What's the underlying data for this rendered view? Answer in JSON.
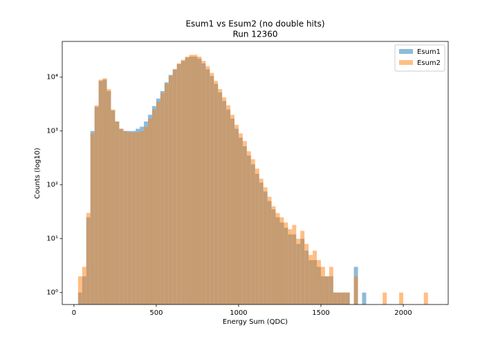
{
  "chart_data": {
    "type": "histogram",
    "title": "Esum1 vs Esum2 (no double hits)",
    "subtitle": "Run 12360",
    "x_label": "Energy Sum (QDC)",
    "y_label": "Counts (log10)",
    "bins": [
      25,
      50,
      75,
      100,
      125,
      150,
      175,
      200,
      225,
      250,
      275,
      300,
      325,
      350,
      375,
      400,
      425,
      450,
      475,
      500,
      525,
      550,
      575,
      600,
      625,
      650,
      675,
      700,
      725,
      750,
      775,
      800,
      825,
      850,
      875,
      900,
      925,
      950,
      975,
      1000,
      1025,
      1050,
      1075,
      1100,
      1125,
      1150,
      1175,
      1200,
      1225,
      1250,
      1275,
      1300,
      1325,
      1350,
      1375,
      1400,
      1425,
      1450,
      1475,
      1500,
      1525,
      1550,
      1575,
      1600,
      1625,
      1650,
      1675,
      1700,
      1725,
      1750,
      1775,
      1800,
      1825,
      1850,
      1875,
      1900,
      1925,
      1950,
      1975,
      2000,
      2025,
      2050,
      2075,
      2100,
      2125,
      2150,
      2175,
      2200
    ],
    "series": [
      {
        "name": "Esum1",
        "color": "#1f77b4",
        "values": [
          1,
          2,
          25,
          1000,
          2800,
          8500,
          9000,
          5500,
          2400,
          1500,
          1100,
          1000,
          1000,
          1000,
          1100,
          1200,
          1500,
          2000,
          2900,
          4000,
          5500,
          8000,
          11000,
          14000,
          17500,
          20000,
          23000,
          24000,
          24000,
          22000,
          18000,
          14000,
          10500,
          7500,
          5200,
          3600,
          2500,
          1700,
          1100,
          750,
          520,
          350,
          240,
          160,
          110,
          75,
          50,
          35,
          25,
          20,
          16,
          12,
          12,
          8,
          10,
          6,
          4,
          4,
          3,
          2,
          2,
          2,
          1,
          1,
          1,
          1,
          0,
          3,
          0,
          1,
          0,
          0,
          0,
          0,
          0,
          0,
          0,
          0,
          0,
          0,
          0,
          0,
          0,
          0,
          0,
          0,
          0
        ]
      },
      {
        "name": "Esum2",
        "color": "#ff7f0e",
        "values": [
          2,
          3,
          30,
          900,
          3000,
          9000,
          9500,
          6000,
          2500,
          1500,
          1100,
          1000,
          950,
          950,
          950,
          1000,
          1200,
          1700,
          2500,
          3500,
          5000,
          7500,
          10500,
          14000,
          18000,
          21000,
          24000,
          26000,
          26000,
          24000,
          20000,
          16000,
          12000,
          8500,
          6000,
          4200,
          3000,
          2000,
          1300,
          900,
          650,
          420,
          300,
          200,
          130,
          90,
          60,
          40,
          30,
          25,
          20,
          15,
          18,
          10,
          14,
          8,
          5,
          6,
          4,
          3,
          2,
          3,
          1,
          1,
          1,
          1,
          0,
          2,
          0,
          0,
          0,
          0,
          0,
          0,
          1,
          0,
          0,
          0,
          1,
          0,
          0,
          0,
          0,
          0,
          1,
          0,
          0
        ]
      }
    ],
    "xlim": [
      -71,
      2273
    ],
    "ylim": [
      0.6,
      46000
    ],
    "y_scale": "log",
    "xticks": [
      0,
      500,
      1000,
      1500,
      2000
    ],
    "yticks": [
      {
        "value": 1,
        "label": "10⁰"
      },
      {
        "value": 10,
        "label": "10¹"
      },
      {
        "value": 100,
        "label": "10²"
      },
      {
        "value": 1000,
        "label": "10³"
      },
      {
        "value": 10000,
        "label": "10⁴"
      }
    ],
    "opacity": 0.5,
    "legend": "upper right"
  }
}
